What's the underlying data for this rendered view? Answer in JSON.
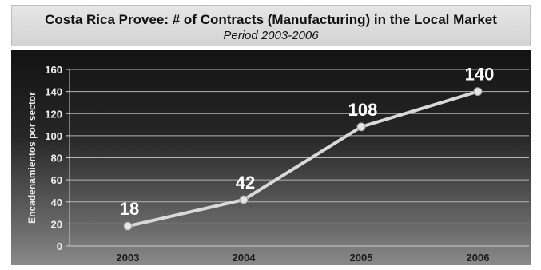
{
  "header": {
    "title": "Costa Rica Provee: # of Contracts (Manufacturing) in the Local Market",
    "subtitle": "Period 2003-2006"
  },
  "chart_data": {
    "type": "line",
    "title": "Costa Rica Provee: # of Contracts (Manufacturing) in the Local Market",
    "subtitle": "Period 2003-2006",
    "xlabel": "",
    "ylabel": "Encadenamientos por sector",
    "categories": [
      "2003",
      "2004",
      "2005",
      "2006"
    ],
    "series": [
      {
        "values": [
          18,
          42,
          108,
          140
        ]
      }
    ],
    "data_labels": [
      "18",
      "42",
      "108",
      "140"
    ],
    "ylim": [
      0,
      160
    ],
    "yticks": [
      0,
      20,
      40,
      60,
      80,
      100,
      120,
      140,
      160
    ],
    "grid": true,
    "line_color": "#d9d9d9",
    "marker_color": "#e6e6e6",
    "background_top": "#131313",
    "background_bottom": "#8a8a8a"
  }
}
